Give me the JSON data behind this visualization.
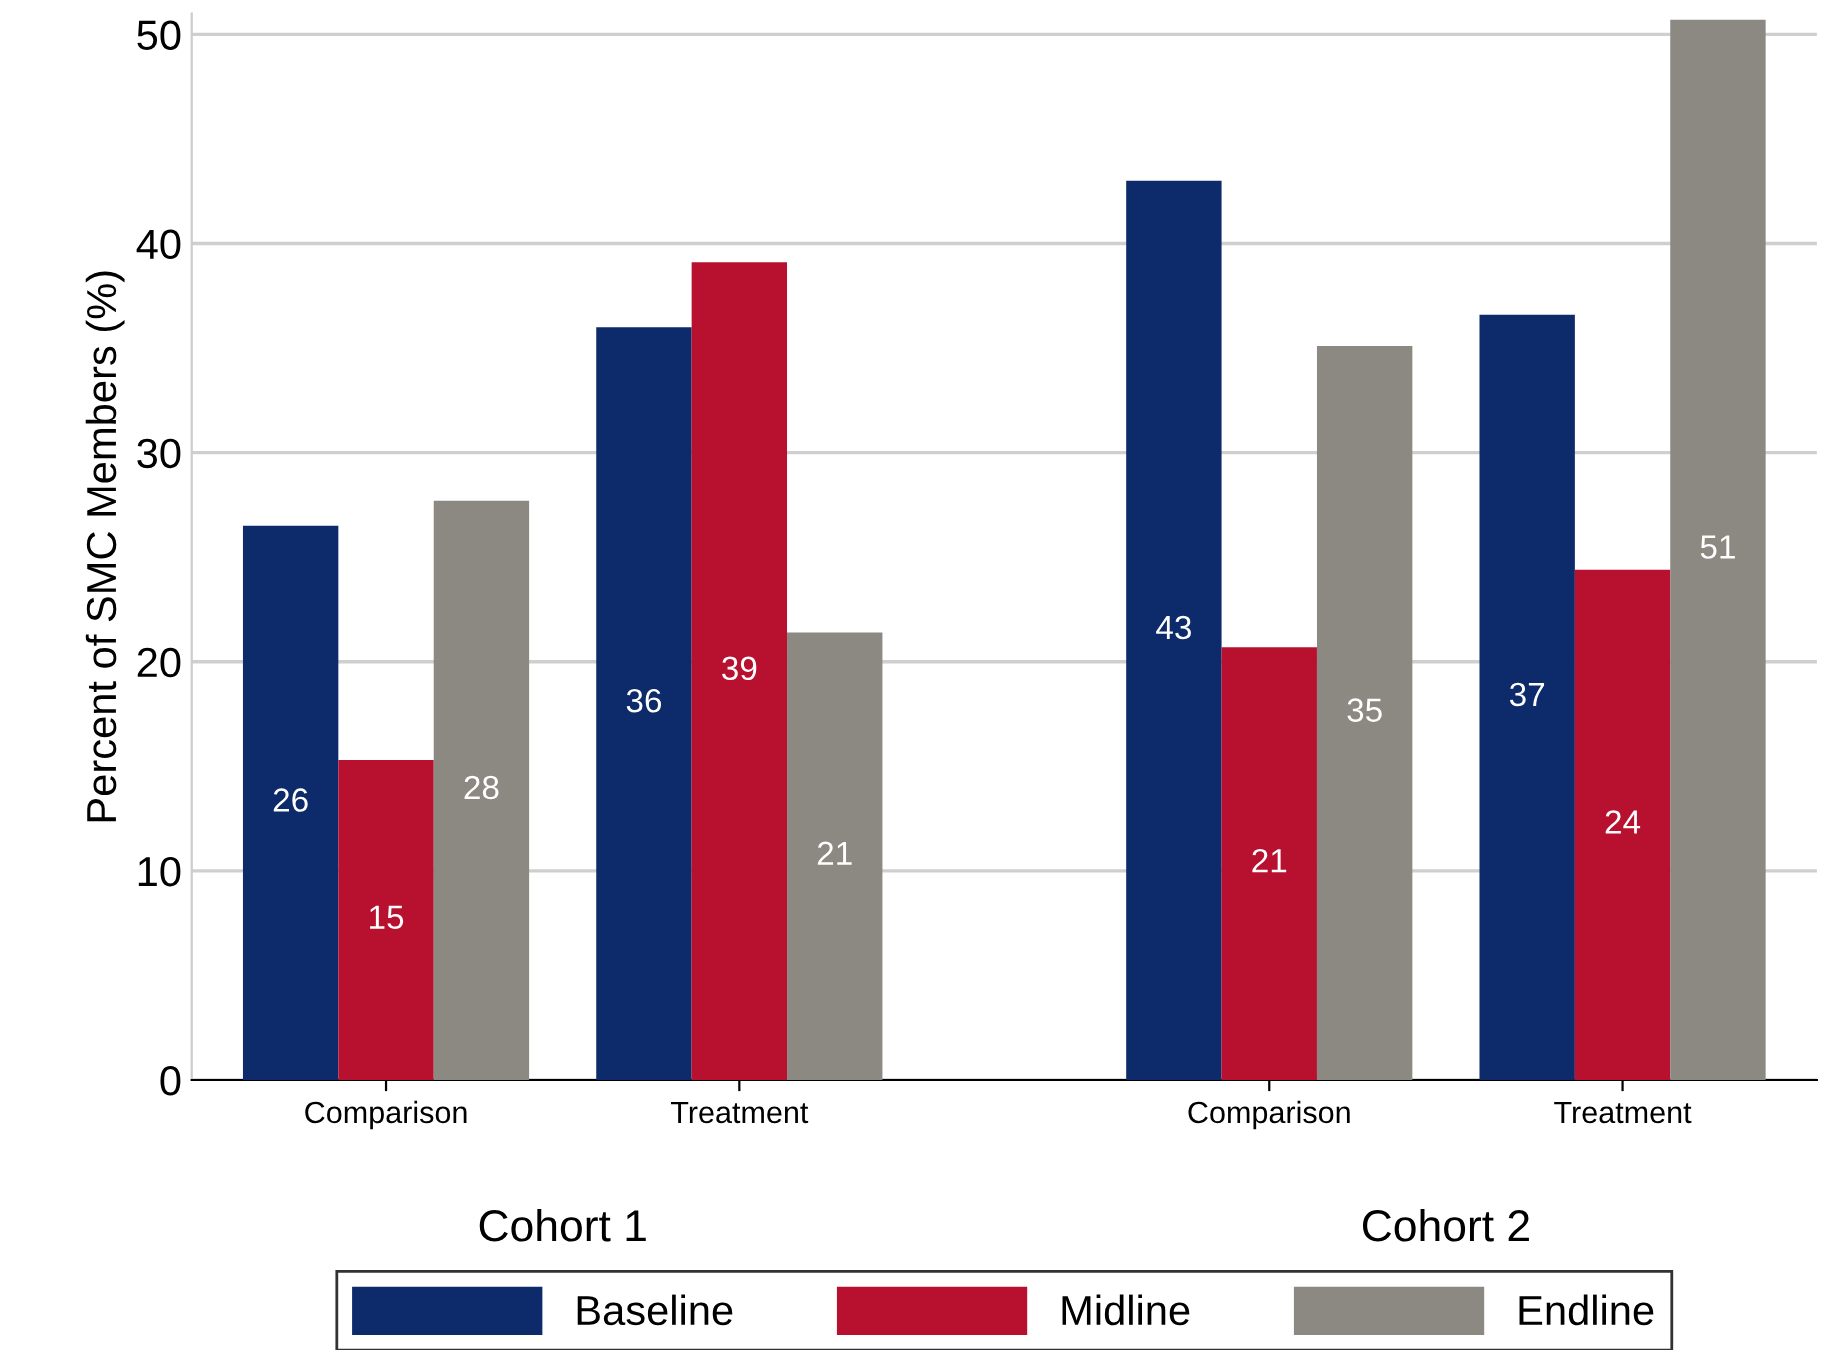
{
  "chart_data": {
    "type": "bar",
    "ylabel": "Percent of SMC Members (%)",
    "categories": [
      "Comparison",
      "Treatment",
      "Comparison",
      "Treatment"
    ],
    "series": [
      {
        "name": "Baseline",
        "color": "#0d2a6b",
        "values": [
          26.5,
          36.0,
          43.0,
          36.6
        ],
        "value_labels": [
          "26",
          "36",
          "43",
          "37"
        ]
      },
      {
        "name": "Midline",
        "color": "#b8102f",
        "values": [
          15.3,
          39.1,
          20.7,
          24.4
        ],
        "value_labels": [
          "15",
          "39",
          "21",
          "24"
        ]
      },
      {
        "name": "Endline",
        "color": "#8c8882",
        "values": [
          27.7,
          21.4,
          35.1,
          50.7
        ],
        "value_labels": [
          "28",
          "21",
          "35",
          "51"
        ]
      }
    ],
    "annotations": [
      "Cohort 1",
      "Cohort 2"
    ],
    "ylim": [
      0,
      51
    ],
    "yticks": [
      0,
      10,
      20,
      30,
      40,
      50
    ],
    "grid": "y",
    "legend": "bottom"
  }
}
